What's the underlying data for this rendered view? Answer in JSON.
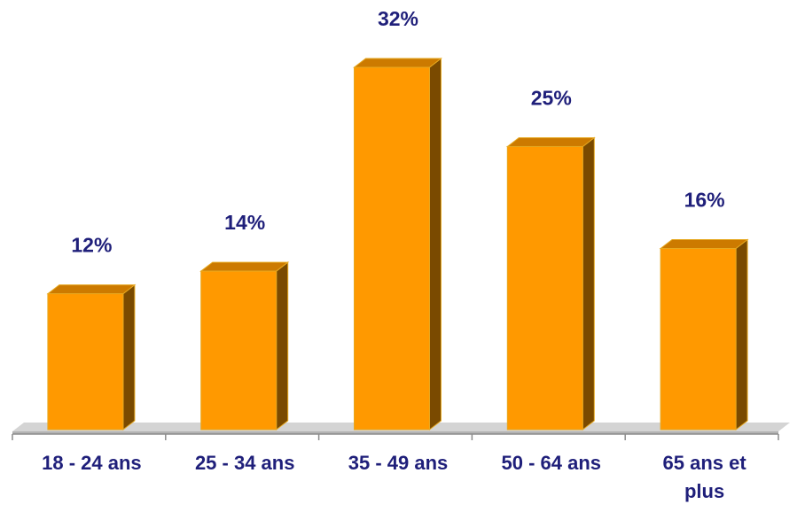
{
  "chart_data": {
    "type": "bar",
    "categories": [
      "18 - 24 ans",
      "25 - 34 ans",
      "35 - 49 ans",
      "50 - 64 ans",
      [
        "65 ans et",
        "plus"
      ]
    ],
    "values": [
      12,
      14,
      32,
      25,
      16
    ],
    "value_labels": [
      "12%",
      "14%",
      "32%",
      "25%",
      "16%"
    ],
    "title": "",
    "xlabel": "",
    "ylabel": "",
    "ylim": [
      0,
      32
    ],
    "grid": false,
    "legend": "none",
    "style": "3d-bar",
    "colors": {
      "bar_front": "#ff9900",
      "bar_top": "#cc7a00",
      "bar_side": "#7a4a00",
      "bar_outline": "#e6a820",
      "floor_top": "#d4d4d4",
      "floor_front": "#b3b3b3",
      "axis": "#8c8c8c",
      "label_text": "#1f1f7a"
    }
  }
}
